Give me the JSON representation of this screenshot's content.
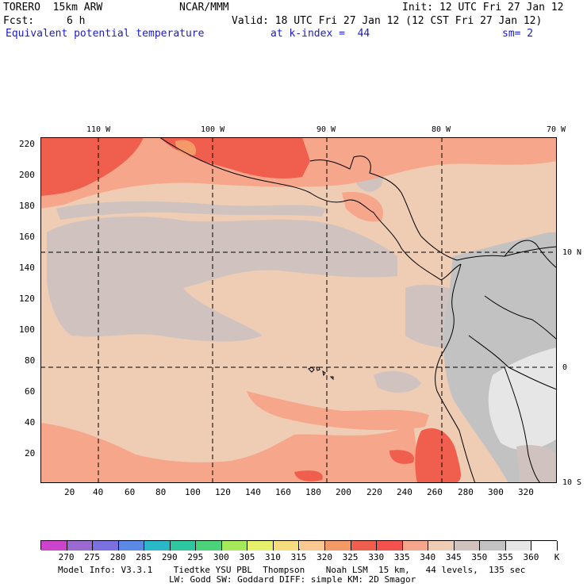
{
  "header": {
    "model": "TORERO  15km ARW",
    "org": "NCAR/MMM",
    "init": "Init: 12 UTC Fri 27 Jan 12",
    "fcst_label": "Fcst:",
    "fcst_value": "6 h",
    "valid": "Valid: 18 UTC Fri 27 Jan 12 (12 CST Fri 27 Jan 12)",
    "field": "Equivalent potential temperature",
    "level": "at k-index =  44",
    "smooth": "sm= 2"
  },
  "map": {
    "top_lon_labels": [
      "110 W",
      "100 W",
      "90 W",
      "80 W",
      "70 W"
    ],
    "right_lat_labels": [
      "10 N",
      "0",
      "10 S"
    ],
    "y_grid_labels": [
      "220",
      "200",
      "180",
      "160",
      "140",
      "120",
      "100",
      "80",
      "60",
      "40",
      "20"
    ],
    "x_grid_labels": [
      "20",
      "40",
      "60",
      "80",
      "100",
      "120",
      "140",
      "160",
      "180",
      "200",
      "220",
      "240",
      "260",
      "280",
      "300",
      "320"
    ]
  },
  "colorbar": {
    "tick_labels": [
      "270",
      "275",
      "280",
      "285",
      "290",
      "295",
      "300",
      "305",
      "310",
      "315",
      "320",
      "325",
      "330",
      "335",
      "340",
      "345",
      "350",
      "355",
      "360"
    ],
    "unit": "K",
    "colors": [
      "#cc44cc",
      "#9a6ad0",
      "#7a70e0",
      "#5b8ae6",
      "#2ab7c8",
      "#2ec7a0",
      "#4cd27a",
      "#a6e85c",
      "#e6f06a",
      "#f5dc7c",
      "#f8c890",
      "#f59a66",
      "#f05f4e",
      "#f3524e",
      "#f6a68a",
      "#efccb4",
      "#d0c3bf",
      "#c2c2c2",
      "#e6e6e6",
      "#ffffff"
    ]
  },
  "footer": {
    "line1": "Model Info: V3.3.1    Tiedtke YSU PBL  Thompson    Noah LSM  15 km,   44 levels,  135 sec",
    "line2": "LW: Godd SW: Goddard DIFF: simple KM: 2D Smagor"
  }
}
